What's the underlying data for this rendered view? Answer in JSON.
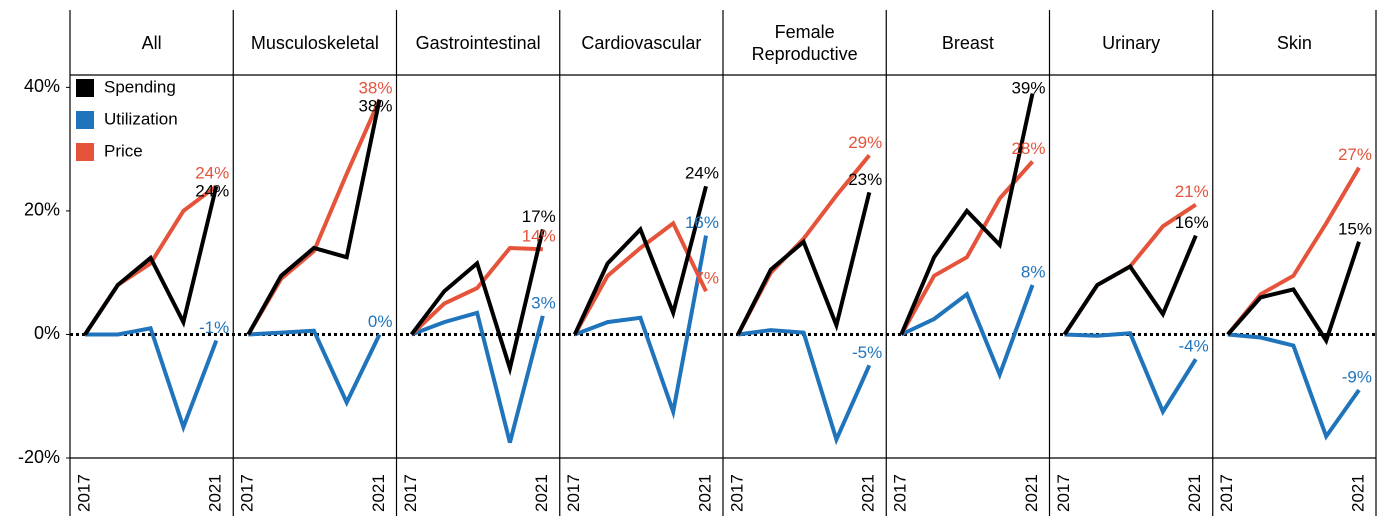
{
  "chart_data": {
    "type": "line",
    "x": [
      "2017",
      null,
      null,
      null,
      "2021"
    ],
    "ylim": [
      -20,
      42
    ],
    "yticks": [
      {
        "value": 40,
        "label": "40%"
      },
      {
        "value": 20,
        "label": "20%"
      },
      {
        "value": 0,
        "label": "0%"
      },
      {
        "value": -20,
        "label": "-20%"
      }
    ],
    "legend": "upper left",
    "series": [
      {
        "name": "Spending",
        "color": "#000000"
      },
      {
        "name": "Utilization",
        "color": "#1f74bb"
      },
      {
        "name": "Price",
        "color": "#e5533b"
      }
    ],
    "panels": [
      {
        "title": "All",
        "series": [
          {
            "values": [
              0,
              8,
              12.4,
              2,
              24
            ],
            "value_labels": [
              null,
              null,
              null,
              null,
              "24%"
            ]
          },
          {
            "values": [
              0,
              0,
              1,
              -15,
              -1
            ],
            "value_labels": [
              null,
              null,
              null,
              null,
              "-1%"
            ]
          },
          {
            "values": [
              0,
              8,
              11.5,
              20,
              24
            ],
            "value_labels": [
              null,
              null,
              null,
              null,
              "24%"
            ]
          }
        ]
      },
      {
        "title": "Musculoskeletal",
        "series": [
          {
            "values": [
              0,
              9.5,
              14,
              12.5,
              38
            ],
            "value_labels": [
              null,
              null,
              null,
              null,
              "38%"
            ]
          },
          {
            "values": [
              0,
              0.3,
              0.6,
              -11,
              0
            ],
            "value_labels": [
              null,
              null,
              null,
              null,
              "0%"
            ]
          },
          {
            "values": [
              0,
              9,
              13.5,
              26,
              38
            ],
            "value_labels": [
              null,
              null,
              null,
              null,
              "38%"
            ]
          }
        ]
      },
      {
        "title": "Gastrointestinal",
        "series": [
          {
            "values": [
              0,
              7,
              11.5,
              -5.5,
              17
            ],
            "value_labels": [
              null,
              null,
              null,
              null,
              "17%"
            ]
          },
          {
            "values": [
              0,
              2,
              3.5,
              -17.5,
              3
            ],
            "value_labels": [
              null,
              null,
              null,
              null,
              "3%"
            ]
          },
          {
            "values": [
              0,
              5,
              7.5,
              14,
              13.8
            ],
            "value_labels": [
              null,
              null,
              null,
              null,
              "14%"
            ]
          }
        ]
      },
      {
        "title": "Cardiovascular",
        "series": [
          {
            "values": [
              0,
              11.5,
              17,
              3.5,
              24
            ],
            "value_labels": [
              null,
              null,
              null,
              null,
              "24%"
            ]
          },
          {
            "values": [
              0,
              2,
              2.7,
              -12.5,
              16
            ],
            "value_labels": [
              null,
              null,
              null,
              null,
              "16%"
            ]
          },
          {
            "values": [
              0,
              9.5,
              14,
              18,
              7
            ],
            "value_labels": [
              null,
              null,
              null,
              null,
              "7%"
            ]
          }
        ]
      },
      {
        "title": "Female Reproductive",
        "series": [
          {
            "values": [
              0,
              10.5,
              15,
              1.5,
              23
            ],
            "value_labels": [
              null,
              null,
              null,
              null,
              "23%"
            ]
          },
          {
            "values": [
              0,
              0.7,
              0.3,
              -17,
              -5
            ],
            "value_labels": [
              null,
              null,
              null,
              null,
              "-5%"
            ]
          },
          {
            "values": [
              0,
              10,
              15.5,
              22.5,
              29
            ],
            "value_labels": [
              null,
              null,
              null,
              null,
              "29%"
            ]
          }
        ]
      },
      {
        "title": "Breast",
        "series": [
          {
            "values": [
              0,
              12.5,
              20,
              14.5,
              39
            ],
            "value_labels": [
              null,
              null,
              null,
              null,
              "39%"
            ]
          },
          {
            "values": [
              0,
              2.5,
              6.5,
              -6.5,
              8
            ],
            "value_labels": [
              null,
              null,
              null,
              null,
              "8%"
            ]
          },
          {
            "values": [
              0,
              9.5,
              12.5,
              22,
              28
            ],
            "value_labels": [
              null,
              null,
              null,
              null,
              "28%"
            ]
          }
        ]
      },
      {
        "title": "Urinary",
        "series": [
          {
            "values": [
              0,
              8,
              11,
              3.3,
              16
            ],
            "value_labels": [
              null,
              null,
              null,
              null,
              "16%"
            ]
          },
          {
            "values": [
              0,
              -0.2,
              0.2,
              -12.5,
              -4
            ],
            "value_labels": [
              null,
              null,
              null,
              null,
              "-4%"
            ]
          },
          {
            "values": [
              0,
              8,
              11,
              17.5,
              21
            ],
            "value_labels": [
              null,
              null,
              null,
              null,
              "21%"
            ]
          }
        ]
      },
      {
        "title": "Skin",
        "series": [
          {
            "values": [
              0,
              6,
              7.3,
              -1,
              15
            ],
            "value_labels": [
              null,
              null,
              null,
              null,
              "15%"
            ]
          },
          {
            "values": [
              0,
              -0.5,
              -1.8,
              -16.5,
              -9
            ],
            "value_labels": [
              null,
              null,
              null,
              null,
              "-9%"
            ]
          },
          {
            "values": [
              0,
              6.5,
              9.5,
              18,
              27
            ],
            "value_labels": [
              null,
              null,
              null,
              null,
              "27%"
            ]
          }
        ]
      }
    ]
  }
}
